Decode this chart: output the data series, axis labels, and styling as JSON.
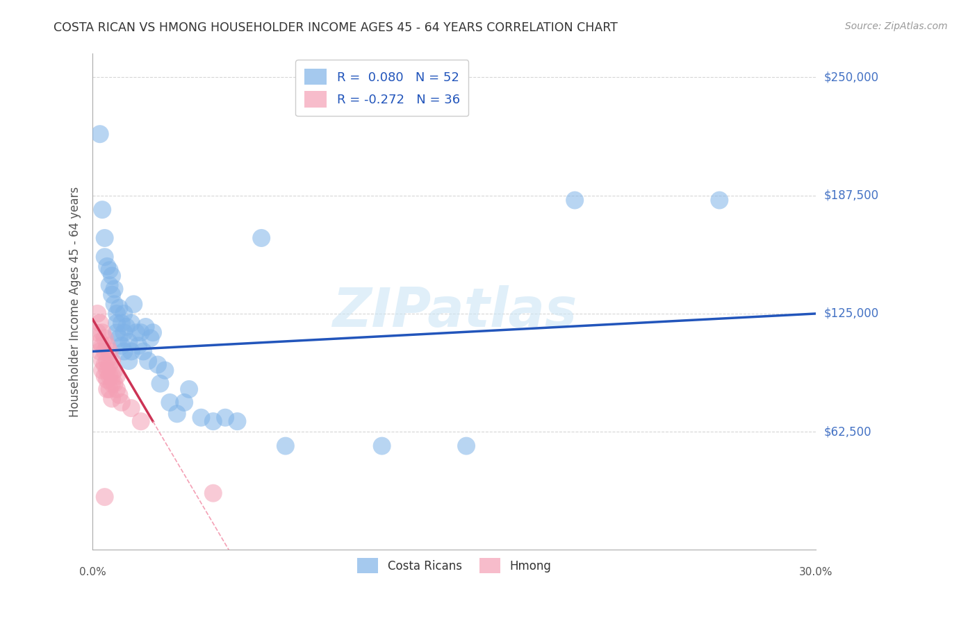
{
  "title": "COSTA RICAN VS HMONG HOUSEHOLDER INCOME AGES 45 - 64 YEARS CORRELATION CHART",
  "source": "Source: ZipAtlas.com",
  "ylabel": "Householder Income Ages 45 - 64 years",
  "xlim": [
    0.0,
    0.3
  ],
  "ylim": [
    0,
    262500
  ],
  "yticks": [
    62500,
    125000,
    187500,
    250000
  ],
  "ytick_labels": [
    "$62,500",
    "$125,000",
    "$187,500",
    "$250,000"
  ],
  "xticks": [
    0.0,
    0.05,
    0.1,
    0.15,
    0.2,
    0.25,
    0.3
  ],
  "watermark": "ZIPatlas",
  "costa_rican_R": 0.08,
  "costa_rican_N": 52,
  "hmong_R": -0.272,
  "hmong_N": 36,
  "costa_rican_color": "#7fb3e8",
  "hmong_color": "#f4a0b5",
  "trend_blue": "#2255bb",
  "trend_pink": "#cc3355",
  "trend_dashed_pink": "#f4a0b5",
  "background_color": "#ffffff",
  "grid_color": "#cccccc",
  "title_color": "#333333",
  "axis_label_color": "#555555",
  "ytick_label_color": "#4472c4",
  "costa_rican_x": [
    0.003,
    0.004,
    0.005,
    0.005,
    0.006,
    0.007,
    0.007,
    0.008,
    0.008,
    0.009,
    0.009,
    0.01,
    0.01,
    0.01,
    0.011,
    0.011,
    0.012,
    0.012,
    0.013,
    0.013,
    0.013,
    0.014,
    0.015,
    0.015,
    0.016,
    0.016,
    0.017,
    0.018,
    0.019,
    0.02,
    0.021,
    0.022,
    0.023,
    0.024,
    0.025,
    0.027,
    0.028,
    0.03,
    0.032,
    0.035,
    0.038,
    0.04,
    0.045,
    0.05,
    0.055,
    0.06,
    0.07,
    0.08,
    0.12,
    0.155,
    0.2,
    0.26
  ],
  "costa_rican_y": [
    220000,
    180000,
    165000,
    155000,
    150000,
    148000,
    140000,
    145000,
    135000,
    138000,
    130000,
    125000,
    120000,
    115000,
    128000,
    112000,
    120000,
    108000,
    125000,
    115000,
    105000,
    118000,
    110000,
    100000,
    120000,
    105000,
    130000,
    115000,
    108000,
    115000,
    105000,
    118000,
    100000,
    112000,
    115000,
    98000,
    88000,
    95000,
    78000,
    72000,
    78000,
    85000,
    70000,
    68000,
    70000,
    68000,
    165000,
    55000,
    55000,
    55000,
    185000,
    185000
  ],
  "hmong_x": [
    0.002,
    0.002,
    0.003,
    0.003,
    0.003,
    0.004,
    0.004,
    0.004,
    0.004,
    0.005,
    0.005,
    0.005,
    0.005,
    0.006,
    0.006,
    0.006,
    0.006,
    0.006,
    0.007,
    0.007,
    0.007,
    0.007,
    0.008,
    0.008,
    0.008,
    0.008,
    0.009,
    0.009,
    0.01,
    0.01,
    0.011,
    0.012,
    0.016,
    0.02,
    0.05,
    0.005
  ],
  "hmong_y": [
    125000,
    115000,
    120000,
    110000,
    105000,
    115000,
    108000,
    100000,
    95000,
    112000,
    105000,
    98000,
    92000,
    108000,
    100000,
    95000,
    90000,
    85000,
    105000,
    98000,
    92000,
    85000,
    100000,
    92000,
    88000,
    80000,
    95000,
    88000,
    92000,
    85000,
    82000,
    78000,
    75000,
    68000,
    30000,
    28000
  ],
  "cr_trend_y0": 105000,
  "cr_trend_y1": 125000,
  "hm_trend_x0": 0.0,
  "hm_trend_y0": 122000,
  "hm_trend_x1": 0.025,
  "hm_trend_y1": 68000
}
